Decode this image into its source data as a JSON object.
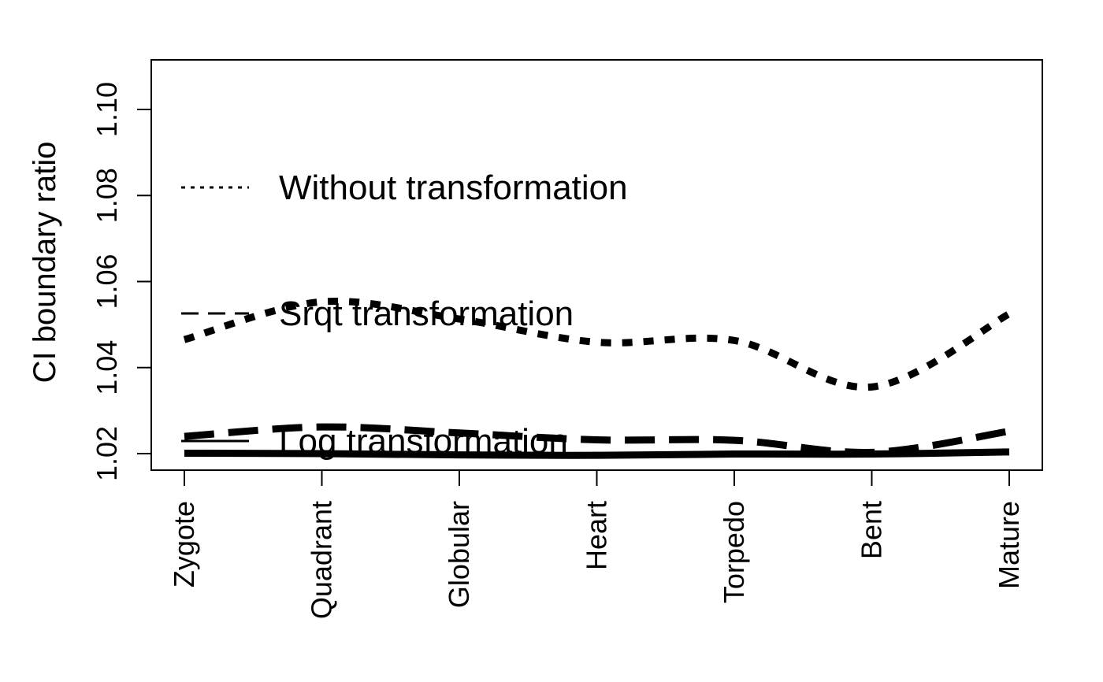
{
  "chart_data": {
    "type": "line",
    "title": "",
    "xlabel": "",
    "ylabel": "CI boundary ratio",
    "categories": [
      "Zygote",
      "Quadrant",
      "Globular",
      "Heart",
      "Torpedo",
      "Bent",
      "Mature"
    ],
    "ylim": [
      1.01,
      1.105
    ],
    "yticks": [
      "1.02",
      "1.04",
      "1.06",
      "1.08",
      "1.10"
    ],
    "grid": false,
    "legend_position": "top-left inside plot",
    "series": [
      {
        "name": "Without transformation",
        "linestyle": "dotted",
        "values": [
          1.0465,
          1.0553,
          1.0513,
          1.0459,
          1.0463,
          1.0355,
          1.0525
        ]
      },
      {
        "name": "Srqt transformation",
        "linestyle": "dashed",
        "values": [
          1.024,
          1.0262,
          1.0248,
          1.0232,
          1.0231,
          1.0203,
          1.0252
        ]
      },
      {
        "name": "Log transformation",
        "linestyle": "solid",
        "values": [
          1.0201,
          1.02,
          1.0197,
          1.0196,
          1.0199,
          1.0199,
          1.0204
        ]
      }
    ],
    "colors": {
      "line": "#000000",
      "background": "#ffffff"
    }
  }
}
